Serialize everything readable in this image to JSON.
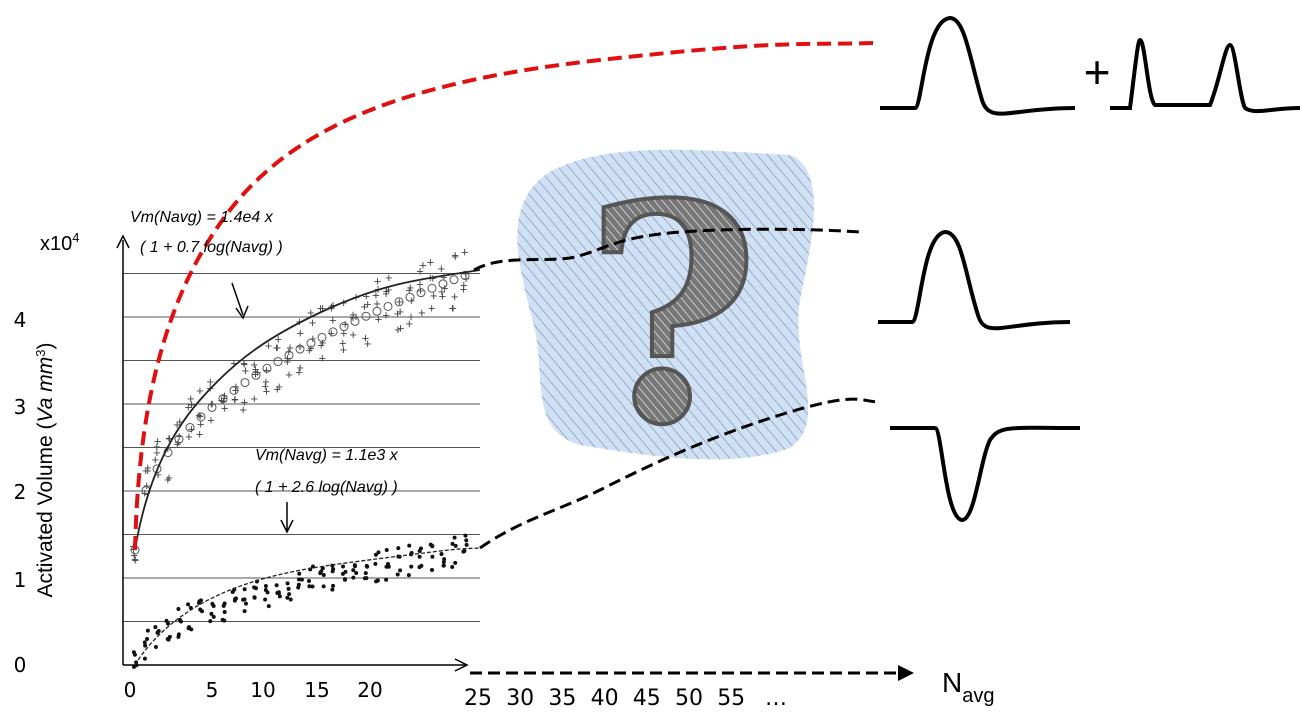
{
  "plot": {
    "multiplier": {
      "base": "x10",
      "exp": "4"
    },
    "y_label": {
      "prefix": "Activated Volume (",
      "unit": "Va mm",
      "exp": "3",
      "suffix": ")"
    },
    "y_ticks": [
      "0",
      "1",
      "2",
      "3",
      "4"
    ],
    "x_ticks": [
      "0",
      "5",
      "10",
      "15",
      "20"
    ],
    "upper_fit": {
      "line1": "Vm(Navg) = 1.4e4 x",
      "line2": "( 1 + 0.7 log(Navg) )"
    },
    "lower_fit": {
      "line1": "Vm(Navg) = 1.1e3 x",
      "line2": "( 1 + 2.6 log(Navg) )"
    }
  },
  "extension": {
    "x_ticks": [
      "25",
      "30",
      "35",
      "40",
      "45",
      "50",
      "55"
    ],
    "ellipsis": "…",
    "x_label": {
      "main": "N",
      "sub": "avg"
    }
  },
  "unknown": {
    "mark": "?"
  },
  "waveforms": {
    "plus": "+"
  }
}
